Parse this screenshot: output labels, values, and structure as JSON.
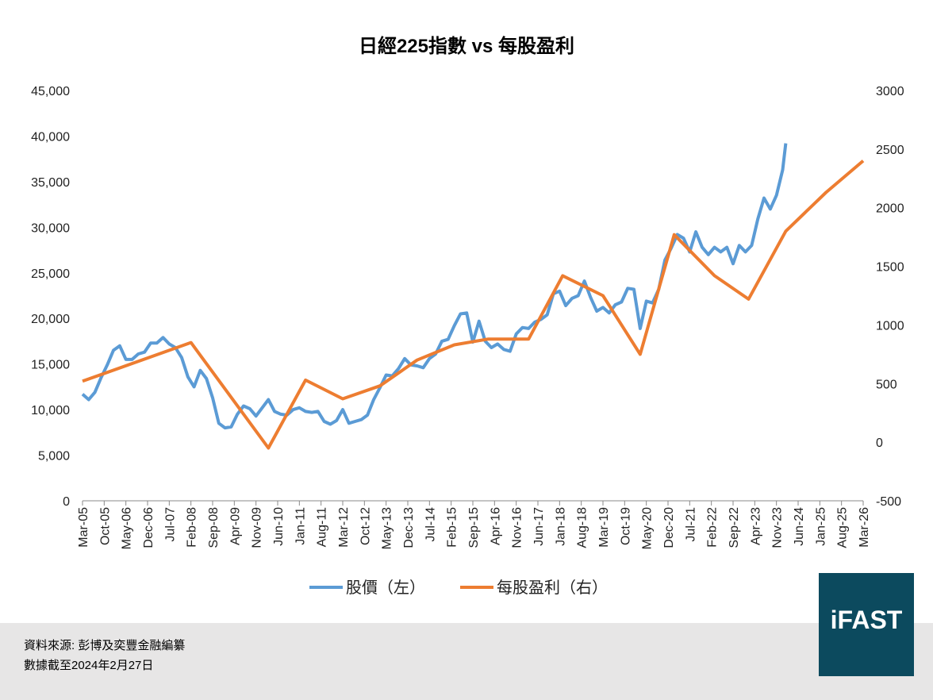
{
  "chart_data": {
    "type": "line",
    "title": "日經225指數 vs 每股盈利",
    "source": "資料來源: 彭博及奕豐金融編纂",
    "note": "數據截至2024年2月27日",
    "logo": "iFAST",
    "xlim": [
      "2005-03",
      "2026-03"
    ],
    "xticks": [
      {
        "value": "2005-03",
        "label": "Mar-05"
      },
      {
        "value": "2005-10",
        "label": "Oct-05"
      },
      {
        "value": "2006-05",
        "label": "May-06"
      },
      {
        "value": "2006-12",
        "label": "Dec-06"
      },
      {
        "value": "2007-07",
        "label": "Jul-07"
      },
      {
        "value": "2008-02",
        "label": "Feb-08"
      },
      {
        "value": "2008-09",
        "label": "Sep-08"
      },
      {
        "value": "2009-04",
        "label": "Apr-09"
      },
      {
        "value": "2009-11",
        "label": "Nov-09"
      },
      {
        "value": "2010-06",
        "label": "Jun-10"
      },
      {
        "value": "2011-01",
        "label": "Jan-11"
      },
      {
        "value": "2011-08",
        "label": "Aug-11"
      },
      {
        "value": "2012-03",
        "label": "Mar-12"
      },
      {
        "value": "2012-10",
        "label": "Oct-12"
      },
      {
        "value": "2013-05",
        "label": "May-13"
      },
      {
        "value": "2013-12",
        "label": "Dec-13"
      },
      {
        "value": "2014-07",
        "label": "Jul-14"
      },
      {
        "value": "2015-02",
        "label": "Feb-15"
      },
      {
        "value": "2015-09",
        "label": "Sep-15"
      },
      {
        "value": "2016-04",
        "label": "Apr-16"
      },
      {
        "value": "2016-11",
        "label": "Nov-16"
      },
      {
        "value": "2017-06",
        "label": "Jun-17"
      },
      {
        "value": "2018-01",
        "label": "Jan-18"
      },
      {
        "value": "2018-08",
        "label": "Aug-18"
      },
      {
        "value": "2019-03",
        "label": "Mar-19"
      },
      {
        "value": "2019-10",
        "label": "Oct-19"
      },
      {
        "value": "2020-05",
        "label": "May-20"
      },
      {
        "value": "2020-12",
        "label": "Dec-20"
      },
      {
        "value": "2021-07",
        "label": "Jul-21"
      },
      {
        "value": "2022-02",
        "label": "Feb-22"
      },
      {
        "value": "2022-09",
        "label": "Sep-22"
      },
      {
        "value": "2023-04",
        "label": "Apr-23"
      },
      {
        "value": "2023-11",
        "label": "Nov-23"
      },
      {
        "value": "2024-06",
        "label": "Jun-24"
      },
      {
        "value": "2025-01",
        "label": "Jan-25"
      },
      {
        "value": "2025-08",
        "label": "Aug-25"
      },
      {
        "value": "2026-03",
        "label": "Mar-26"
      }
    ],
    "ylim": [
      0,
      45000
    ],
    "yticks": [
      0,
      {
        "value": 5000,
        "label": "5,000"
      },
      {
        "value": 10000,
        "label": "10,000"
      },
      {
        "value": 15000,
        "label": "15,000"
      },
      {
        "value": 20000,
        "label": "20,000"
      },
      {
        "value": 25000,
        "label": "25,000"
      },
      {
        "value": 30000,
        "label": "30,000"
      },
      {
        "value": 35000,
        "label": "35,000"
      },
      {
        "value": 40000,
        "label": "40,000"
      },
      {
        "value": 45000,
        "label": "45,000"
      }
    ],
    "y2lim": [
      -500,
      3000
    ],
    "y2ticks": [
      -500,
      0,
      500,
      1000,
      1500,
      2000,
      2500,
      3000
    ],
    "series": [
      {
        "name": "股價（左）",
        "color": "#5b9bd5",
        "axis": "y",
        "x": [
          "2005-03",
          "2005-05",
          "2005-07",
          "2005-09",
          "2005-11",
          "2006-01",
          "2006-03",
          "2006-05",
          "2006-07",
          "2006-09",
          "2006-11",
          "2007-01",
          "2007-03",
          "2007-05",
          "2007-07",
          "2007-09",
          "2007-11",
          "2008-01",
          "2008-03",
          "2008-05",
          "2008-07",
          "2008-09",
          "2008-11",
          "2009-01",
          "2009-03",
          "2009-05",
          "2009-07",
          "2009-09",
          "2009-11",
          "2010-01",
          "2010-03",
          "2010-05",
          "2010-07",
          "2010-09",
          "2010-11",
          "2011-01",
          "2011-03",
          "2011-05",
          "2011-07",
          "2011-09",
          "2011-11",
          "2012-01",
          "2012-03",
          "2012-05",
          "2012-07",
          "2012-09",
          "2012-11",
          "2013-01",
          "2013-03",
          "2013-05",
          "2013-07",
          "2013-09",
          "2013-11",
          "2014-01",
          "2014-03",
          "2014-05",
          "2014-07",
          "2014-09",
          "2014-11",
          "2015-01",
          "2015-03",
          "2015-05",
          "2015-07",
          "2015-09",
          "2015-11",
          "2016-01",
          "2016-03",
          "2016-05",
          "2016-07",
          "2016-09",
          "2016-11",
          "2017-01",
          "2017-03",
          "2017-05",
          "2017-07",
          "2017-09",
          "2017-11",
          "2018-01",
          "2018-03",
          "2018-05",
          "2018-07",
          "2018-09",
          "2018-11",
          "2019-01",
          "2019-03",
          "2019-05",
          "2019-07",
          "2019-09",
          "2019-11",
          "2020-01",
          "2020-03",
          "2020-05",
          "2020-07",
          "2020-09",
          "2020-11",
          "2021-01",
          "2021-03",
          "2021-05",
          "2021-07",
          "2021-09",
          "2021-11",
          "2022-01",
          "2022-03",
          "2022-05",
          "2022-07",
          "2022-09",
          "2022-11",
          "2023-01",
          "2023-03",
          "2023-05",
          "2023-07",
          "2023-09",
          "2023-11",
          "2024-01",
          "2024-02"
        ],
        "values": [
          11700,
          11100,
          11900,
          13500,
          14900,
          16500,
          17000,
          15500,
          15500,
          16100,
          16300,
          17300,
          17300,
          17900,
          17200,
          16800,
          15700,
          13600,
          12500,
          14300,
          13400,
          11300,
          8500,
          8000,
          8100,
          9500,
          10400,
          10100,
          9300,
          10200,
          11100,
          9800,
          9500,
          9400,
          10000,
          10200,
          9800,
          9700,
          9800,
          8700,
          8400,
          8800,
          10000,
          8500,
          8700,
          8900,
          9400,
          11100,
          12400,
          13800,
          13700,
          14500,
          15600,
          14900,
          14800,
          14600,
          15600,
          16100,
          17500,
          17700,
          19200,
          20500,
          20600,
          17400,
          19700,
          17500,
          16800,
          17200,
          16600,
          16400,
          18300,
          19000,
          18900,
          19600,
          19900,
          20400,
          22700,
          23000,
          21400,
          22200,
          22500,
          24100,
          22300,
          20800,
          21200,
          20600,
          21500,
          21800,
          23300,
          23200,
          18900,
          21900,
          21700,
          23200,
          26400,
          27700,
          29200,
          28800,
          27300,
          29500,
          27800,
          27000,
          27800,
          27300,
          27800,
          26000,
          28000,
          27300,
          28000,
          30900,
          33200,
          32000,
          33500,
          36300,
          39200
        ]
      },
      {
        "name": "每股盈利（右）",
        "color": "#ed7d31",
        "axis": "y2",
        "x": [
          "2005-03",
          "2008-02",
          "2010-03",
          "2011-03",
          "2012-03",
          "2013-03",
          "2014-03",
          "2015-03",
          "2016-02",
          "2017-03",
          "2018-02",
          "2019-03",
          "2020-03",
          "2021-02",
          "2022-03",
          "2023-02",
          "2024-02",
          "2025-03",
          "2026-03"
        ],
        "values": [
          520,
          850,
          -50,
          530,
          370,
          480,
          700,
          830,
          880,
          880,
          1420,
          1250,
          750,
          1770,
          1420,
          1220,
          1800,
          2130,
          2400
        ]
      }
    ]
  }
}
